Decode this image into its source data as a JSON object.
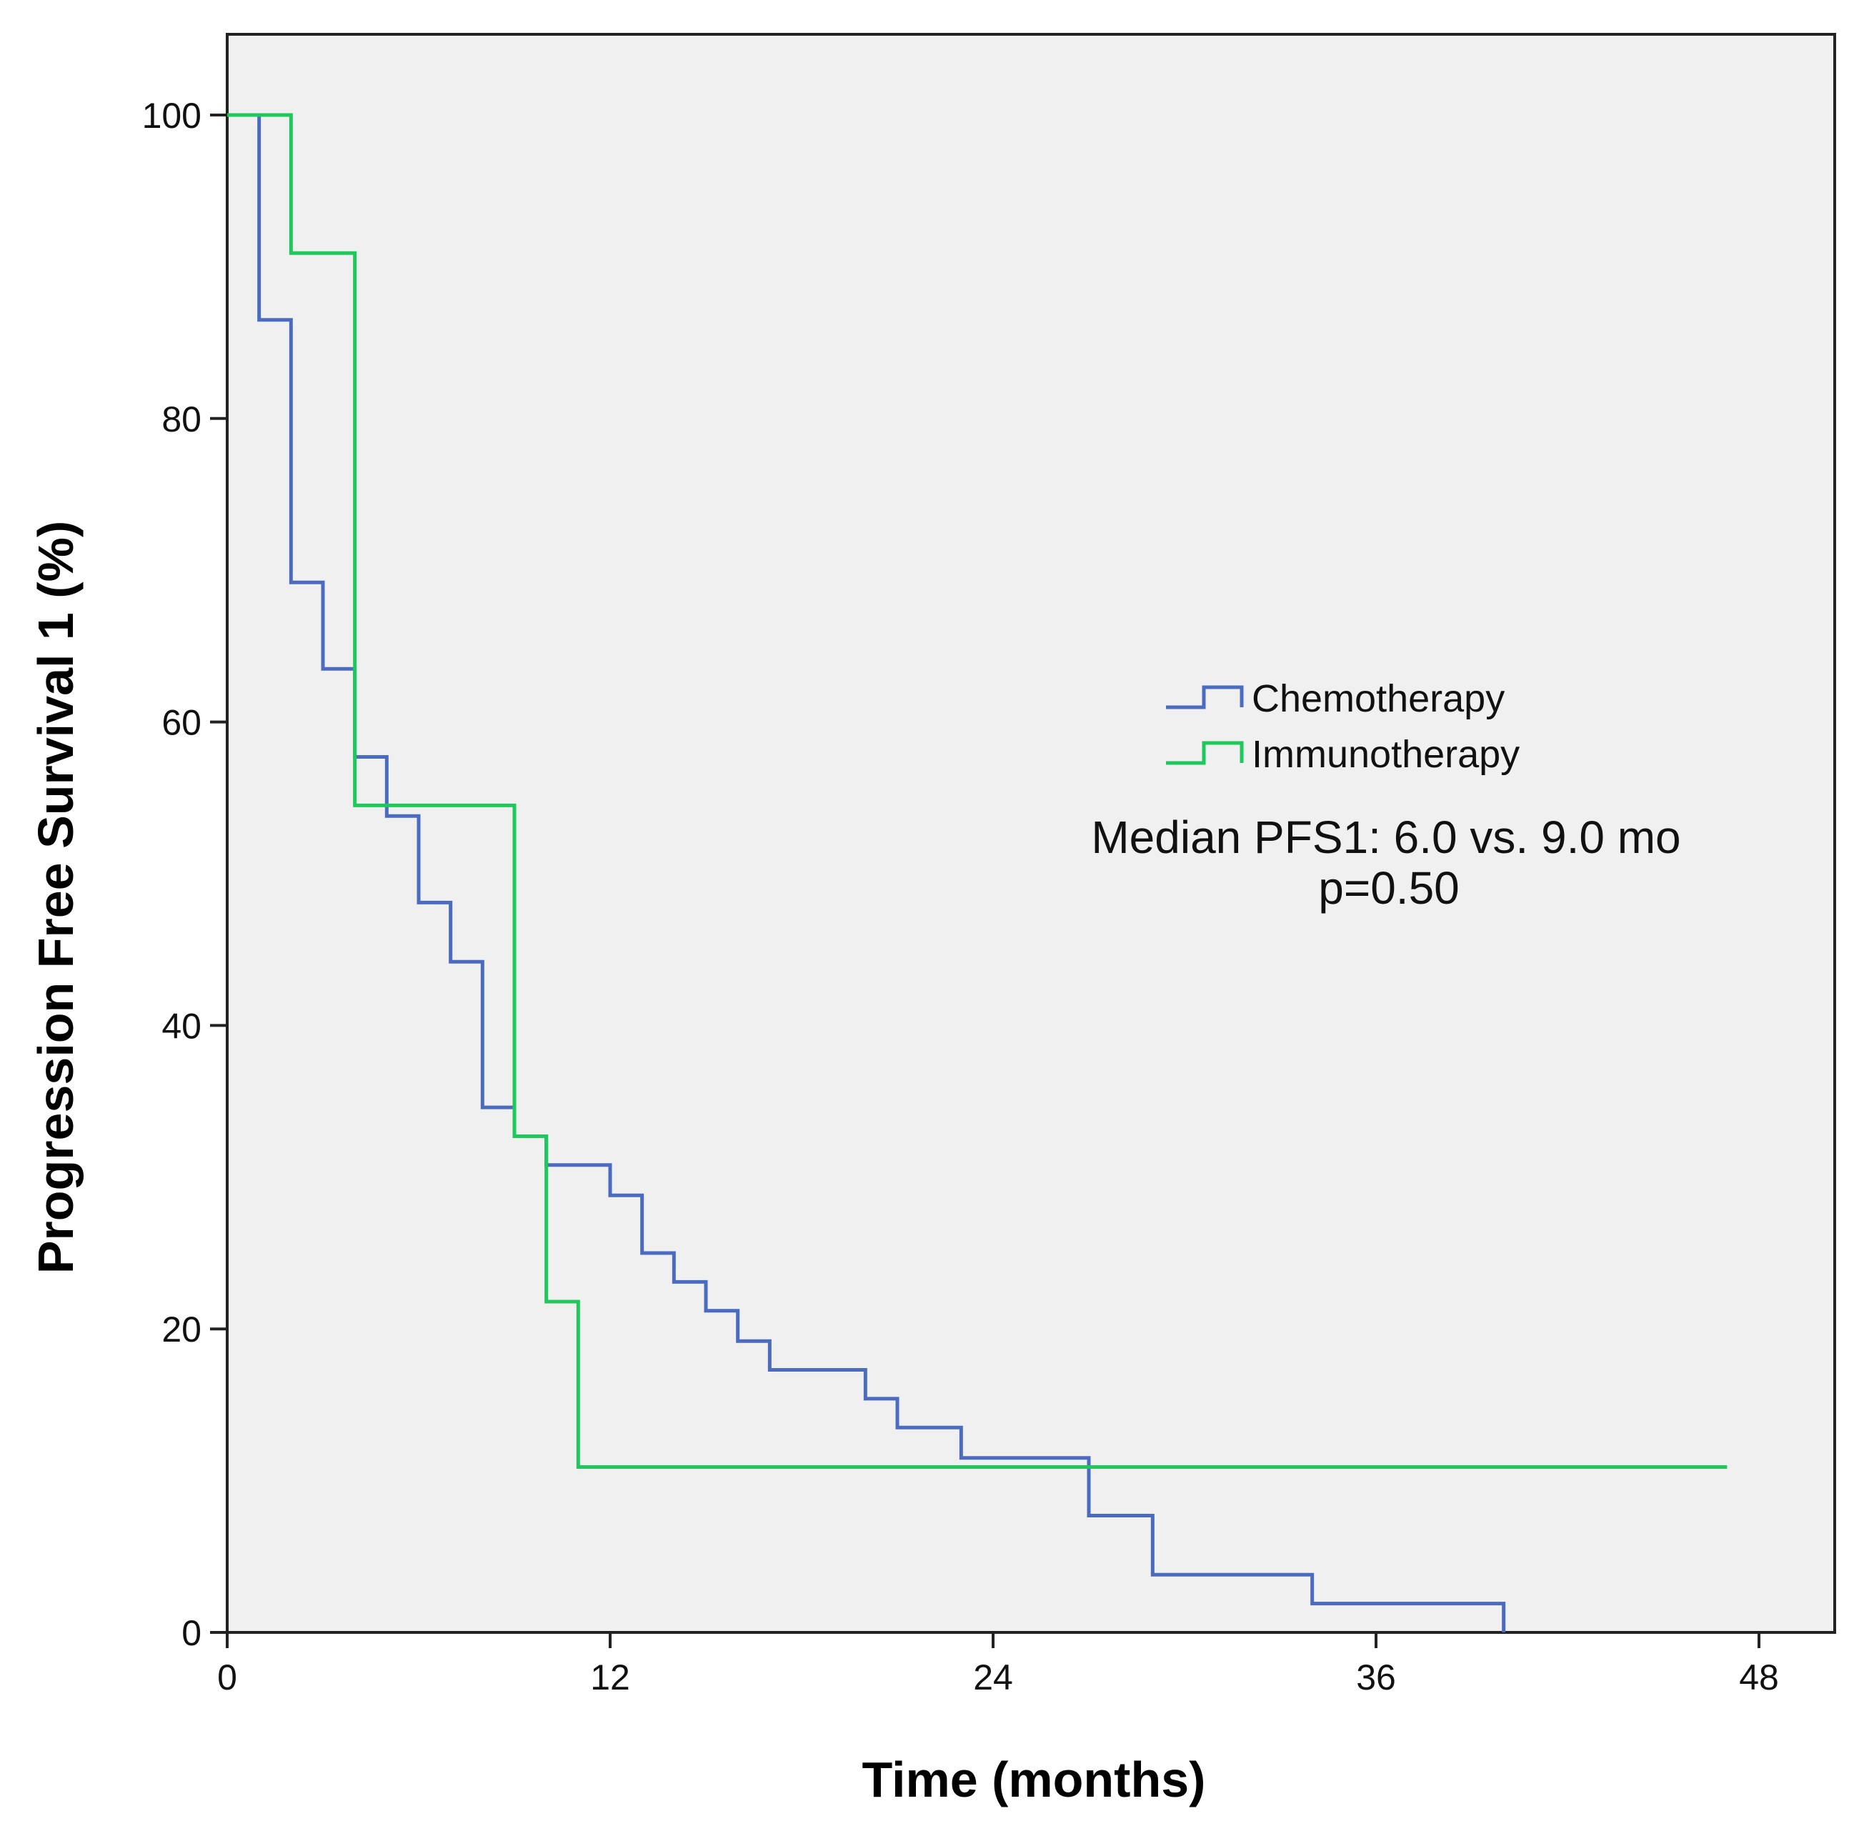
{
  "chart_data": {
    "type": "line",
    "subtype": "kaplan-meier-step",
    "title": "",
    "xlabel": "Time (months)",
    "ylabel": "Progression Free Survival 1 (%)",
    "xlim": [
      0,
      51
    ],
    "ylim": [
      0,
      105
    ],
    "xticks": [
      0,
      12,
      24,
      36,
      48
    ],
    "yticks": [
      0,
      20,
      40,
      60,
      80,
      100
    ],
    "grid": false,
    "legend_position": "right",
    "series": [
      {
        "name": "Chemotherapy",
        "color": "#4a6bc0",
        "x": [
          0,
          1,
          2,
          3,
          4,
          5,
          6,
          7,
          8,
          9,
          10,
          12,
          13,
          14,
          15,
          16,
          17,
          20,
          21,
          23,
          27,
          29,
          34,
          40
        ],
        "y": [
          100,
          86.5,
          69.2,
          63.5,
          57.7,
          53.8,
          48.1,
          44.2,
          34.6,
          32.7,
          30.8,
          28.8,
          25.0,
          23.1,
          21.2,
          19.2,
          17.3,
          15.4,
          13.5,
          11.5,
          7.7,
          3.8,
          1.9,
          0
        ]
      },
      {
        "name": "Immunotherapy",
        "color": "#1fc85a",
        "x": [
          0,
          2,
          4,
          9,
          10,
          11,
          47
        ],
        "y": [
          100,
          90.9,
          54.5,
          32.7,
          21.8,
          10.9,
          10.9
        ]
      }
    ],
    "annotations": [
      "Median PFS1: 6.0 vs. 9.0 mo",
      "p=0.50"
    ]
  }
}
